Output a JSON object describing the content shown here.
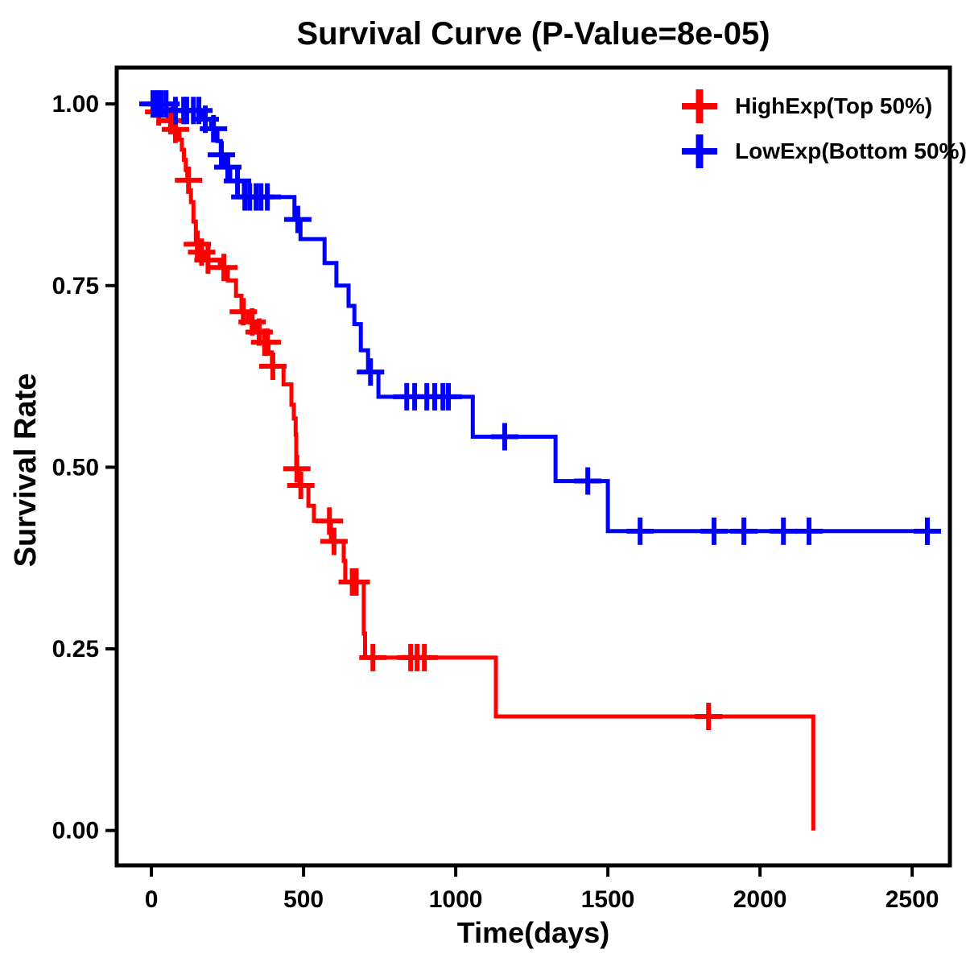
{
  "chart": {
    "title": "Survival Curve (P-Value=8e-05)",
    "x_axis": {
      "label": "Time(days)"
    },
    "y_axis": {
      "label": "Survival Rate"
    }
  },
  "chart_data": {
    "type": "line",
    "subtype": "kaplan-meier-step-curve",
    "title": "Survival Curve (P-Value=8e-05)",
    "xlabel": "Time(days)",
    "ylabel": "Survival Rate",
    "grid": false,
    "legend_position": "top-right",
    "background": "#ffffff",
    "axis_color": "#000000",
    "x_axis": {
      "domain": [
        -114,
        2624
      ],
      "ticks": [
        {
          "v": 0,
          "label": "0"
        },
        {
          "v": 500,
          "label": "500"
        },
        {
          "v": 1000,
          "label": "1000"
        },
        {
          "v": 1500,
          "label": "1500"
        },
        {
          "v": 2000,
          "label": "2000"
        },
        {
          "v": 2500,
          "label": "2500"
        }
      ]
    },
    "y_axis": {
      "domain": [
        -0.048,
        1.05
      ],
      "ticks": [
        {
          "v": 1.0,
          "label": "1.00"
        },
        {
          "v": 0.75,
          "label": "0.75"
        },
        {
          "v": 0.5,
          "label": "0.50"
        },
        {
          "v": 0.25,
          "label": "0.25"
        },
        {
          "v": 0.0,
          "label": "0.00"
        }
      ]
    },
    "series": [
      {
        "name": "HighExp(Top 50%)",
        "color": "#FF0000",
        "end_time": 2175,
        "steps": [
          [
            0,
            1.0
          ],
          [
            20,
            0.989
          ],
          [
            55,
            0.977
          ],
          [
            75,
            0.965
          ],
          [
            92,
            0.951
          ],
          [
            100,
            0.937
          ],
          [
            107,
            0.923
          ],
          [
            113,
            0.909
          ],
          [
            118,
            0.895
          ],
          [
            123,
            0.881
          ],
          [
            130,
            0.865
          ],
          [
            138,
            0.838
          ],
          [
            146,
            0.807
          ],
          [
            158,
            0.796
          ],
          [
            175,
            0.785
          ],
          [
            225,
            0.775
          ],
          [
            251,
            0.757
          ],
          [
            278,
            0.736
          ],
          [
            296,
            0.714
          ],
          [
            317,
            0.7
          ],
          [
            345,
            0.686
          ],
          [
            370,
            0.672
          ],
          [
            385,
            0.658
          ],
          [
            396,
            0.639
          ],
          [
            434,
            0.614
          ],
          [
            460,
            0.586
          ],
          [
            468,
            0.567
          ],
          [
            474,
            0.545
          ],
          [
            476,
            0.498
          ],
          [
            487,
            0.475
          ],
          [
            516,
            0.447
          ],
          [
            534,
            0.426
          ],
          [
            590,
            0.398
          ],
          [
            632,
            0.371
          ],
          [
            637,
            0.342
          ],
          [
            698,
            0.271
          ],
          [
            702,
            0.238
          ],
          [
            1132,
            0.157
          ],
          [
            2175,
            0.0
          ]
        ],
        "censor_times": [
          24,
          63,
          79,
          122,
          151,
          165,
          186,
          238,
          302,
          331,
          354,
          372,
          381,
          399,
          478,
          491,
          585,
          600,
          660,
          673,
          728,
          852,
          873,
          897,
          1831
        ]
      },
      {
        "name": "LowExp(Bottom 50%)",
        "color": "#0000FF",
        "end_time": 2585,
        "steps": [
          [
            0,
            1.0
          ],
          [
            71,
            0.991
          ],
          [
            169,
            0.979
          ],
          [
            196,
            0.966
          ],
          [
            217,
            0.949
          ],
          [
            228,
            0.93
          ],
          [
            243,
            0.913
          ],
          [
            259,
            0.894
          ],
          [
            304,
            0.872
          ],
          [
            470,
            0.841
          ],
          [
            490,
            0.814
          ],
          [
            569,
            0.781
          ],
          [
            608,
            0.75
          ],
          [
            648,
            0.722
          ],
          [
            667,
            0.697
          ],
          [
            688,
            0.661
          ],
          [
            712,
            0.631
          ],
          [
            746,
            0.597
          ],
          [
            1056,
            0.542
          ],
          [
            1328,
            0.481
          ],
          [
            1500,
            0.412
          ]
        ],
        "censor_times": [
          5,
          18,
          32,
          48,
          79,
          106,
          116,
          138,
          156,
          177,
          204,
          230,
          251,
          283,
          307,
          323,
          344,
          360,
          381,
          481,
          720,
          839,
          865,
          905,
          931,
          958,
          976,
          1161,
          1434,
          1606,
          1849,
          1947,
          2077,
          2161,
          2550
        ]
      }
    ]
  }
}
